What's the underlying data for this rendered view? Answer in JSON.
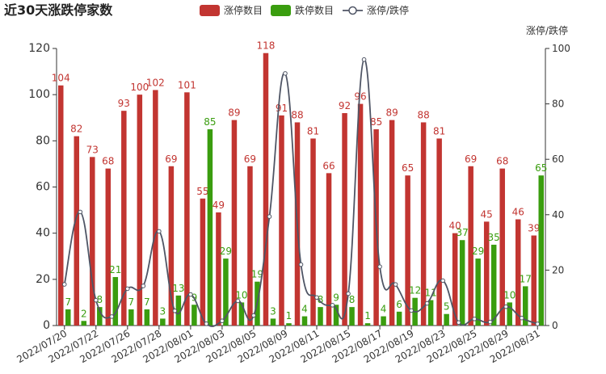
{
  "chart_data": {
    "type": "bar-line",
    "title": "近30天涨跌停家数",
    "y2_label": "涨停/跌停",
    "categories": [
      "2022/07/20",
      null,
      "2022/07/22",
      null,
      "2022/07/26",
      null,
      "2022/07/28",
      null,
      "2022/08/01",
      null,
      "2022/08/03",
      null,
      "2022/08/05",
      null,
      "2022/08/09",
      null,
      "2022/08/11",
      null,
      "2022/08/15",
      null,
      "2022/08/17",
      null,
      "2022/08/19",
      null,
      "2022/08/23",
      null,
      "2022/08/25",
      null,
      "2022/08/29",
      null,
      "2022/08/31"
    ],
    "series": [
      {
        "name": "涨停数目",
        "type": "bar",
        "color": "#c23531",
        "values": [
          104,
          82,
          73,
          68,
          93,
          100,
          102,
          69,
          101,
          55,
          49,
          89,
          69,
          118,
          91,
          88,
          81,
          66,
          92,
          96,
          85,
          89,
          65,
          88,
          81,
          40,
          69,
          45,
          68,
          46,
          39
        ]
      },
      {
        "name": "跌停数目",
        "type": "bar",
        "color": "#3a9d0f",
        "values": [
          7,
          2,
          8,
          21,
          7,
          7,
          3,
          13,
          9,
          85,
          29,
          10,
          19,
          3,
          1,
          4,
          8,
          9,
          8,
          1,
          4,
          6,
          12,
          11,
          5,
          37,
          29,
          35,
          10,
          17,
          65
        ]
      },
      {
        "name": "涨停/跌停",
        "type": "line",
        "axis": "y2",
        "color": "#4f5565",
        "values": [
          14.86,
          41,
          9.13,
          3.24,
          13.29,
          14.29,
          34,
          5.31,
          11.22,
          0.65,
          1.69,
          8.9,
          3.63,
          39.33,
          91,
          22,
          10.13,
          7.33,
          11.5,
          96,
          21.25,
          14.83,
          5.42,
          8,
          16.2,
          1.08,
          2.38,
          1.29,
          6.8,
          2.71,
          0.6
        ]
      }
    ],
    "ylim": [
      0,
      120
    ],
    "yticks": [
      0,
      20,
      40,
      60,
      80,
      100,
      120
    ],
    "y2lim": [
      0,
      100
    ],
    "y2ticks": [
      0,
      20,
      40,
      60,
      80,
      100
    ],
    "grid": false,
    "legend": "top"
  }
}
